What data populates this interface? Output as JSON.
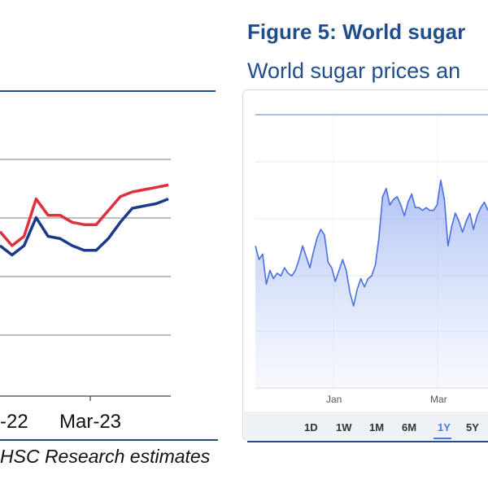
{
  "left_figure": {
    "source": "HSC Research estimates",
    "source_visible": "HSC Research estimates"
  },
  "right_figure": {
    "title": "Figure 5: World sugar",
    "subtitle": "World sugar prices an"
  },
  "range_buttons": [
    {
      "label": "1D",
      "active": false
    },
    {
      "label": "1W",
      "active": false
    },
    {
      "label": "1M",
      "active": false
    },
    {
      "label": "6M",
      "active": false
    },
    {
      "label": "1Y",
      "active": true
    },
    {
      "label": "5Y",
      "active": false
    }
  ],
  "colors": {
    "brand_blue": "#1f4e8c",
    "series_red": "#e03040",
    "series_navy": "#1a3a8a",
    "area_line": "#4a6fe0",
    "range_active": "#4a7ae0"
  },
  "chart_data": [
    {
      "type": "line",
      "x_tick_labels": [
        "-22",
        "Mar-23"
      ],
      "grid": true,
      "series": [
        {
          "values": [
            60,
            54,
            58,
            74,
            67,
            67,
            64,
            63,
            63,
            69,
            75,
            77,
            78,
            79,
            80
          ]
        },
        {
          "values": [
            54,
            50,
            54,
            66,
            58,
            57,
            54,
            52,
            52,
            57,
            64,
            70,
            71,
            72,
            74
          ]
        }
      ],
      "ylim": [
        0,
        100
      ]
    },
    {
      "type": "area",
      "x_tick_labels": [
        "Jan",
        "Mar"
      ],
      "grid": true,
      "series": [
        {
          "values": [
            52,
            47,
            49,
            38,
            43,
            40,
            42,
            41,
            44,
            42,
            41,
            43,
            47,
            52,
            48,
            44,
            50,
            55,
            58,
            56,
            46,
            44,
            39,
            43,
            47,
            43,
            35,
            30,
            36,
            40,
            37,
            40,
            41,
            45,
            55,
            70,
            73,
            67,
            69,
            70,
            67,
            63,
            68,
            71,
            66,
            66,
            65,
            66,
            65,
            65,
            67,
            76,
            69,
            52,
            59,
            64,
            61,
            57,
            61,
            64,
            58,
            63,
            66,
            68,
            65
          ]
        }
      ],
      "ylim": [
        0,
        100
      ]
    }
  ]
}
